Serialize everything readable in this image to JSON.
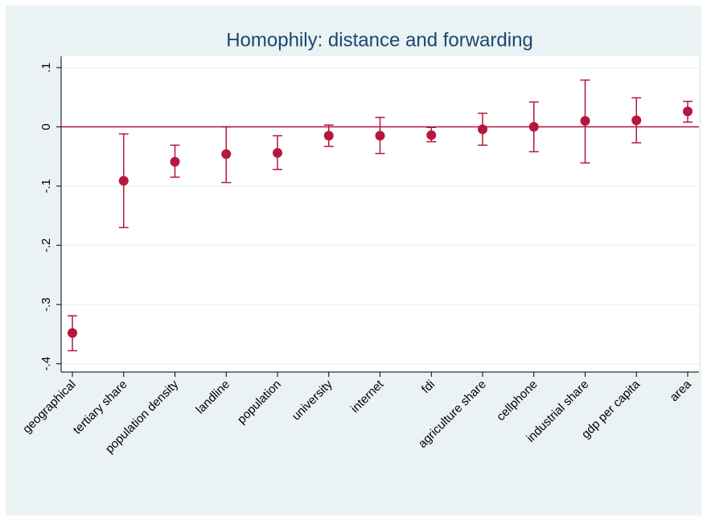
{
  "chart_data": {
    "type": "errorbar",
    "title": "Homophily: distance and forwarding",
    "categories": [
      "geographical",
      "tertiary share",
      "population density",
      "landline",
      "population",
      "university",
      "internet",
      "fdi",
      "agriculture share",
      "cellphone",
      "industrial share",
      "gdp per capita",
      "area"
    ],
    "series": [
      {
        "color": "#b5173e",
        "values": [
          -0.348,
          -0.091,
          -0.059,
          -0.046,
          -0.044,
          -0.015,
          -0.015,
          -0.014,
          -0.004,
          0.0,
          0.01,
          0.011,
          0.026
        ],
        "ci_low": [
          -0.378,
          -0.17,
          -0.085,
          -0.094,
          -0.072,
          -0.033,
          -0.045,
          -0.025,
          -0.031,
          -0.042,
          -0.061,
          -0.027,
          0.008
        ],
        "ci_high": [
          -0.319,
          -0.012,
          -0.031,
          0.0,
          -0.015,
          0.003,
          0.016,
          -0.001,
          0.023,
          0.042,
          0.079,
          0.049,
          0.043
        ]
      }
    ],
    "reference_line": 0,
    "ylim": [
      -0.414,
      0.119
    ],
    "yticks": [
      {
        "value": -0.4,
        "label": "-.4"
      },
      {
        "value": -0.3,
        "label": "-.3"
      },
      {
        "value": -0.2,
        "label": "-.2"
      },
      {
        "value": -0.1,
        "label": "-.1"
      },
      0,
      {
        "value": 0.1,
        "label": ".1"
      }
    ],
    "grid": true
  }
}
